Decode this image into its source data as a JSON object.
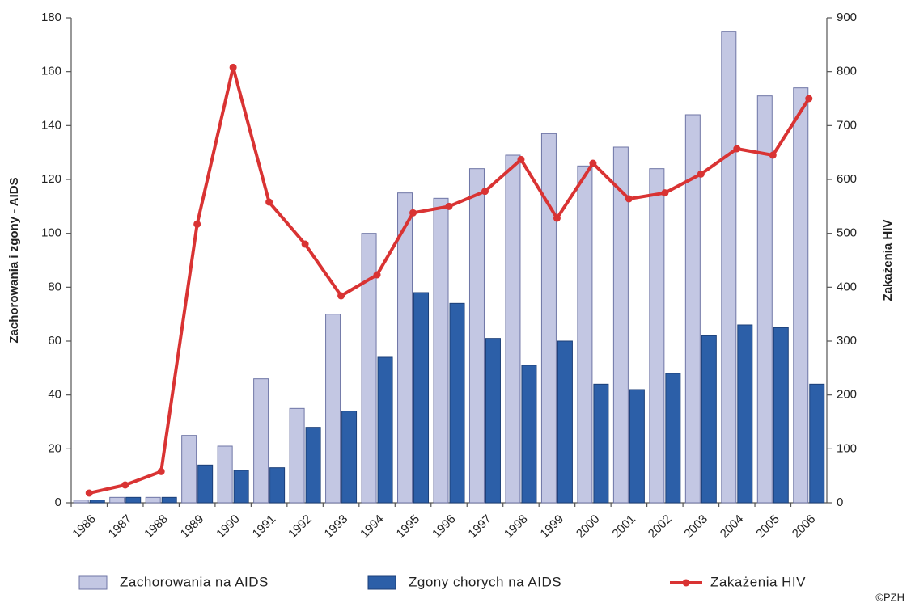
{
  "chart_data": {
    "type": "bar",
    "y_label": "Zachorowania i zgony - AIDS",
    "y2_label": "Zakażenia HIV",
    "source": "©PZH",
    "categories": [
      "1986",
      "1987",
      "1988",
      "1989",
      "1990",
      "1991",
      "1992",
      "1993",
      "1994",
      "1995",
      "1996",
      "1997",
      "1998",
      "1999",
      "2000",
      "2001",
      "2002",
      "2003",
      "2004",
      "2005",
      "2006"
    ],
    "series": [
      {
        "name": "Zachorowania na AIDS",
        "color": "#c3c7e3",
        "values": [
          1,
          2,
          2,
          25,
          21,
          46,
          35,
          70,
          100,
          115,
          113,
          124,
          129,
          137,
          125,
          132,
          124,
          144,
          175,
          151,
          154
        ]
      },
      {
        "name": "Zgony chorych na AIDS",
        "color": "#2c5fa8",
        "values": [
          1,
          2,
          2,
          14,
          12,
          13,
          28,
          34,
          54,
          78,
          74,
          61,
          51,
          60,
          44,
          42,
          48,
          62,
          66,
          65,
          44
        ]
      },
      {
        "name": "Zakażenia HIV",
        "color": "#d93333",
        "type": "line",
        "axis": "y2",
        "values": [
          18,
          33,
          58,
          517,
          808,
          558,
          480,
          384,
          423,
          538,
          550,
          578,
          637,
          528,
          630,
          564,
          575,
          610,
          657,
          645,
          750
        ]
      }
    ],
    "ylim": [
      0,
      180
    ],
    "yticks": [
      0,
      20,
      40,
      60,
      80,
      100,
      120,
      140,
      160,
      180
    ],
    "y2lim": [
      0,
      900
    ],
    "y2ticks": [
      0,
      100,
      200,
      300,
      400,
      500,
      600,
      700,
      800,
      900
    ],
    "grid": false
  }
}
